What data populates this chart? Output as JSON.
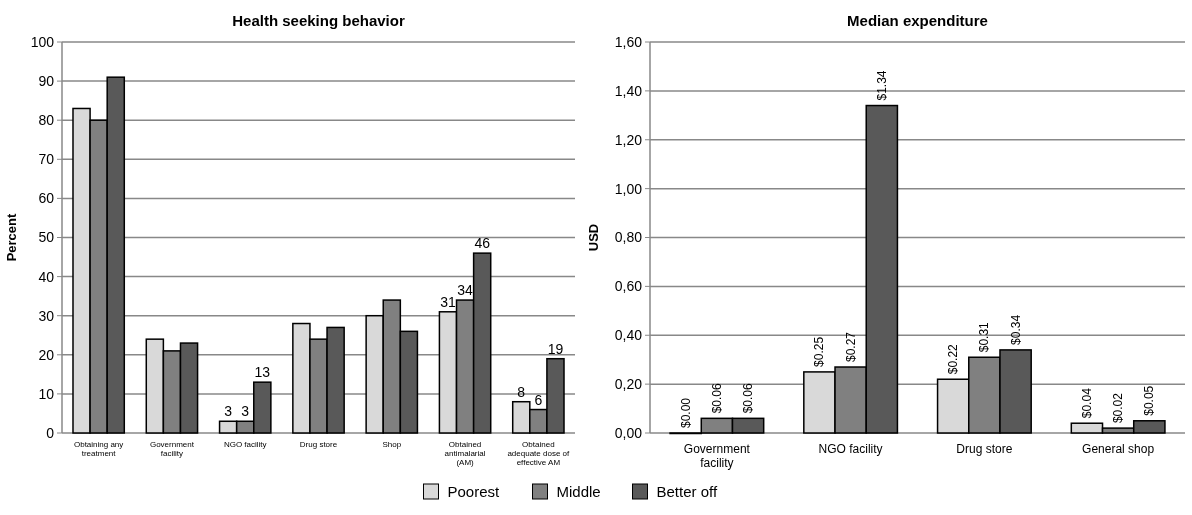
{
  "chart_data": [
    {
      "type": "bar",
      "title": "Health seeking behavior",
      "ylabel": "Percent",
      "categories": [
        "Obtaining any treatment",
        "Government facility",
        "NGO facility",
        "Drug store",
        "Shop",
        "Obtained antimalarial (AM)",
        "Obtained adequate dose of effective AM"
      ],
      "series": [
        {
          "color": "#d9d9d9",
          "values": [
            83,
            24,
            3,
            28,
            30,
            31,
            8
          ],
          "value_labels": [
            null,
            null,
            "3",
            null,
            null,
            "31",
            "8"
          ]
        },
        {
          "color": "#808080",
          "values": [
            80,
            21,
            3,
            24,
            34,
            34,
            6
          ],
          "value_labels": [
            null,
            null,
            "3",
            null,
            null,
            "34",
            "6"
          ]
        },
        {
          "color": "#595959",
          "values": [
            91,
            23,
            13,
            27,
            26,
            46,
            19
          ],
          "value_labels": [
            null,
            null,
            "13",
            null,
            null,
            "46",
            "19"
          ]
        }
      ],
      "ylim": [
        0,
        100
      ],
      "yticks": [
        0,
        10,
        20,
        30,
        40,
        50,
        60,
        70,
        80,
        90,
        100
      ],
      "grid": "y"
    },
    {
      "type": "bar",
      "title": "Median expenditure",
      "ylabel": "USD",
      "categories": [
        "Government facility",
        "NGO facility",
        "Drug store",
        "General shop"
      ],
      "series": [
        {
          "name": "Poorest",
          "color": "#d9d9d9",
          "values": [
            0,
            0.25,
            0.22,
            0.04
          ],
          "value_labels": [
            "$0.00",
            "$0.25",
            "$0.22",
            "$0.04"
          ]
        },
        {
          "name": "Middle",
          "color": "#808080",
          "values": [
            0.06,
            0.27,
            0.31,
            0.02
          ],
          "value_labels": [
            "$0.06",
            "$0.27",
            "$0.31",
            "$0.02"
          ]
        },
        {
          "name": "Better off",
          "color": "#595959",
          "values": [
            0.06,
            1.34,
            0.34,
            0.05
          ],
          "value_labels": [
            "$0.06",
            "$1.34",
            "$0.34",
            "$0.05"
          ]
        }
      ],
      "ylim": [
        0,
        1.6
      ],
      "yticks": [
        {
          "value": 0,
          "label": "0,00"
        },
        {
          "value": 0.2,
          "label": "0,20"
        },
        {
          "value": 0.4,
          "label": "0,40"
        },
        {
          "value": 0.6,
          "label": "0,60"
        },
        {
          "value": 0.8,
          "label": "0,80"
        },
        {
          "value": 1,
          "label": "1,00"
        },
        {
          "value": 1.2,
          "label": "1,20"
        },
        {
          "value": 1.4,
          "label": "1,40"
        },
        {
          "value": 1.6,
          "label": "1,60"
        }
      ],
      "grid": "y",
      "legend": "bottom"
    }
  ]
}
